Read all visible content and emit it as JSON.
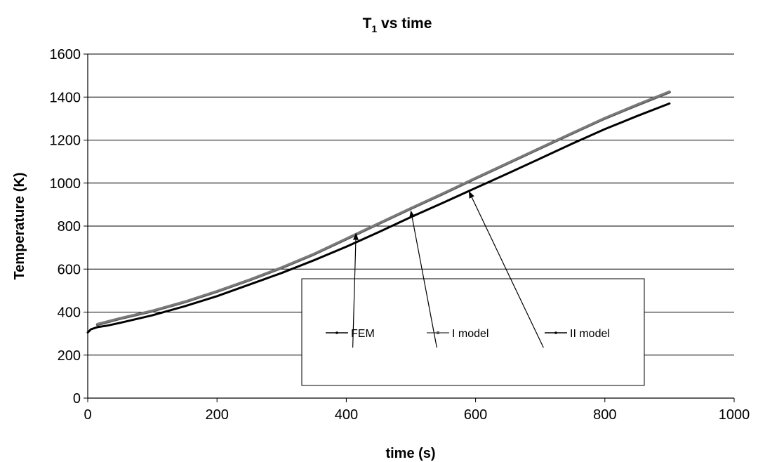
{
  "chart_data": {
    "type": "line",
    "title": {
      "main": "T",
      "sub": "1",
      "rest": " vs time"
    },
    "xlabel": "time (s)",
    "ylabel": "Temperature (K)",
    "xlim": [
      0,
      1000
    ],
    "ylim": [
      0,
      1600
    ],
    "xticks": [
      0,
      200,
      400,
      600,
      800,
      1000
    ],
    "yticks": [
      0,
      200,
      400,
      600,
      800,
      1000,
      1200,
      1400,
      1600
    ],
    "grid": "horizontal",
    "legend_position": "bottom-center",
    "series": [
      {
        "name": "FEM",
        "color": "#555555",
        "points": [
          [
            15,
            342
          ],
          [
            50,
            370
          ],
          [
            100,
            405
          ],
          [
            150,
            447
          ],
          [
            200,
            496
          ],
          [
            250,
            549
          ],
          [
            300,
            606
          ],
          [
            350,
            669
          ],
          [
            400,
            740
          ],
          [
            450,
            811
          ],
          [
            500,
            882
          ],
          [
            550,
            951
          ],
          [
            600,
            1022
          ],
          [
            650,
            1092
          ],
          [
            700,
            1162
          ],
          [
            750,
            1232
          ],
          [
            800,
            1301
          ],
          [
            850,
            1363
          ],
          [
            900,
            1423
          ]
        ]
      },
      {
        "name": "I model",
        "color": "#7a7a7a",
        "points": [
          [
            15,
            345
          ],
          [
            50,
            372
          ],
          [
            100,
            407
          ],
          [
            150,
            449
          ],
          [
            200,
            498
          ],
          [
            250,
            551
          ],
          [
            300,
            608
          ],
          [
            350,
            671
          ],
          [
            400,
            742
          ],
          [
            450,
            813
          ],
          [
            500,
            884
          ],
          [
            550,
            953
          ],
          [
            600,
            1024
          ],
          [
            650,
            1094
          ],
          [
            700,
            1164
          ],
          [
            750,
            1234
          ],
          [
            800,
            1303
          ],
          [
            850,
            1366
          ],
          [
            900,
            1426
          ]
        ]
      },
      {
        "name": "II model",
        "color": "#000000",
        "points": [
          [
            0,
            305
          ],
          [
            5,
            320
          ],
          [
            15,
            330
          ],
          [
            30,
            337
          ],
          [
            50,
            350
          ],
          [
            100,
            385
          ],
          [
            150,
            427
          ],
          [
            200,
            474
          ],
          [
            250,
            528
          ],
          [
            300,
            582
          ],
          [
            350,
            641
          ],
          [
            400,
            704
          ],
          [
            450,
            772
          ],
          [
            500,
            842
          ],
          [
            550,
            909
          ],
          [
            600,
            977
          ],
          [
            650,
            1045
          ],
          [
            700,
            1114
          ],
          [
            750,
            1184
          ],
          [
            800,
            1251
          ],
          [
            850,
            1312
          ],
          [
            900,
            1370
          ]
        ]
      }
    ],
    "annotations": [
      {
        "label": "FEM",
        "from": [
          410,
          235
        ],
        "to": [
          415,
          765
        ]
      },
      {
        "label": "I model",
        "from": [
          540,
          235
        ],
        "to": [
          500,
          870
        ]
      },
      {
        "label": "II model",
        "from": [
          705,
          235
        ],
        "to": [
          590,
          960
        ]
      }
    ]
  }
}
